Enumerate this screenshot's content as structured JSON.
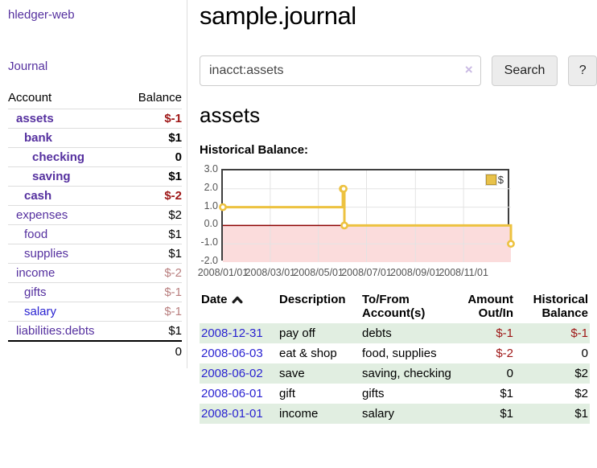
{
  "colors": {
    "link_purple": "#55309f",
    "link_blue": "#2a23d1",
    "negative_strong": "#9e1616",
    "negative_soft": "#b97f7f",
    "row_stripe_green": "#e1eee1",
    "chart_line_gold": "#edc240"
  },
  "sidebar": {
    "brand": "hledger-web",
    "nav_journal": "Journal",
    "accounts": {
      "header_account": "Account",
      "header_balance": "Balance",
      "rows": [
        {
          "name": "assets",
          "indent": 1,
          "bold": true,
          "link": "purple",
          "balance": "$-1",
          "balance_class": "neg"
        },
        {
          "name": "bank",
          "indent": 2,
          "bold": true,
          "link": "purple",
          "balance": "$1",
          "balance_class": ""
        },
        {
          "name": "checking",
          "indent": 3,
          "bold": true,
          "link": "purple",
          "balance": "0",
          "balance_class": ""
        },
        {
          "name": "saving",
          "indent": 3,
          "bold": true,
          "link": "purple",
          "balance": "$1",
          "balance_class": ""
        },
        {
          "name": "cash",
          "indent": 2,
          "bold": true,
          "link": "purple",
          "balance": "$-2",
          "balance_class": "neg"
        },
        {
          "name": "expenses",
          "indent": 1,
          "bold": false,
          "link": "purple",
          "balance": "$2",
          "balance_class": ""
        },
        {
          "name": "food",
          "indent": 2,
          "bold": false,
          "link": "purple",
          "balance": "$1",
          "balance_class": ""
        },
        {
          "name": "supplies",
          "indent": 2,
          "bold": false,
          "link": "purple",
          "balance": "$1",
          "balance_class": ""
        },
        {
          "name": "income",
          "indent": 1,
          "bold": false,
          "link": "purple",
          "balance": "$-2",
          "balance_class": "neg-soft"
        },
        {
          "name": "gifts",
          "indent": 2,
          "bold": false,
          "link": "purple",
          "balance": "$-1",
          "balance_class": "neg-soft"
        },
        {
          "name": "salary",
          "indent": 2,
          "bold": false,
          "link": "blue",
          "balance": "$-1",
          "balance_class": "neg-soft"
        },
        {
          "name": "liabilities:debts",
          "indent": 1,
          "bold": false,
          "link": "purple",
          "balance": "$1",
          "balance_class": ""
        }
      ],
      "total": "0"
    }
  },
  "main": {
    "title": "sample.journal",
    "search": {
      "value": "inacct:assets",
      "clear_icon": "×",
      "button_label": "Search",
      "help_label": "?"
    },
    "account_heading": "assets"
  },
  "chart_data": {
    "type": "line",
    "line_style": "step",
    "title": "Historical Balance:",
    "x_range": [
      "2008-01-01",
      "2008-12-31"
    ],
    "ylim": [
      -2,
      3
    ],
    "y_ticks": [
      "3.0",
      "2.0",
      "1.0",
      "0.0",
      "-1.0",
      "-2.0"
    ],
    "x_ticks": [
      "2008/01/01",
      "2008/03/01",
      "2008/05/01",
      "2008/07/01",
      "2008/09/01",
      "2008/11/01"
    ],
    "series": [
      {
        "name": "$",
        "color": "#edc240",
        "points": [
          [
            "2008-01-01",
            1
          ],
          [
            "2008-06-01",
            2
          ],
          [
            "2008-06-02",
            2
          ],
          [
            "2008-06-03",
            0
          ],
          [
            "2008-12-31",
            -1
          ]
        ]
      }
    ],
    "legend": {
      "label": "$",
      "position": "top-right"
    },
    "grid": true,
    "gridline_color": "#e3e3e3",
    "negative_region_color": "#fbdcdc",
    "zero_line_color": "#8b0000"
  },
  "register": {
    "headers": {
      "date": "Date",
      "description": "Description",
      "accounts": "To/From Account(s)",
      "amount": "Amount Out/In",
      "balance": "Historical Balance"
    },
    "sort_direction": "ascending",
    "rows": [
      {
        "date": "2008-12-31",
        "description": "pay off",
        "accounts": "debts",
        "amount": "$-1",
        "amount_neg": true,
        "balance": "$-1",
        "balance_neg": true
      },
      {
        "date": "2008-06-03",
        "description": "eat & shop",
        "accounts": "food, supplies",
        "amount": "$-2",
        "amount_neg": true,
        "balance": "0",
        "balance_neg": false
      },
      {
        "date": "2008-06-02",
        "description": "save",
        "accounts": "saving, checking",
        "amount": "0",
        "amount_neg": false,
        "balance": "$2",
        "balance_neg": false
      },
      {
        "date": "2008-06-01",
        "description": "gift",
        "accounts": "gifts",
        "amount": "$1",
        "amount_neg": false,
        "balance": "$2",
        "balance_neg": false
      },
      {
        "date": "2008-01-01",
        "description": "income",
        "accounts": "salary",
        "amount": "$1",
        "amount_neg": false,
        "balance": "$1",
        "balance_neg": false
      }
    ]
  }
}
